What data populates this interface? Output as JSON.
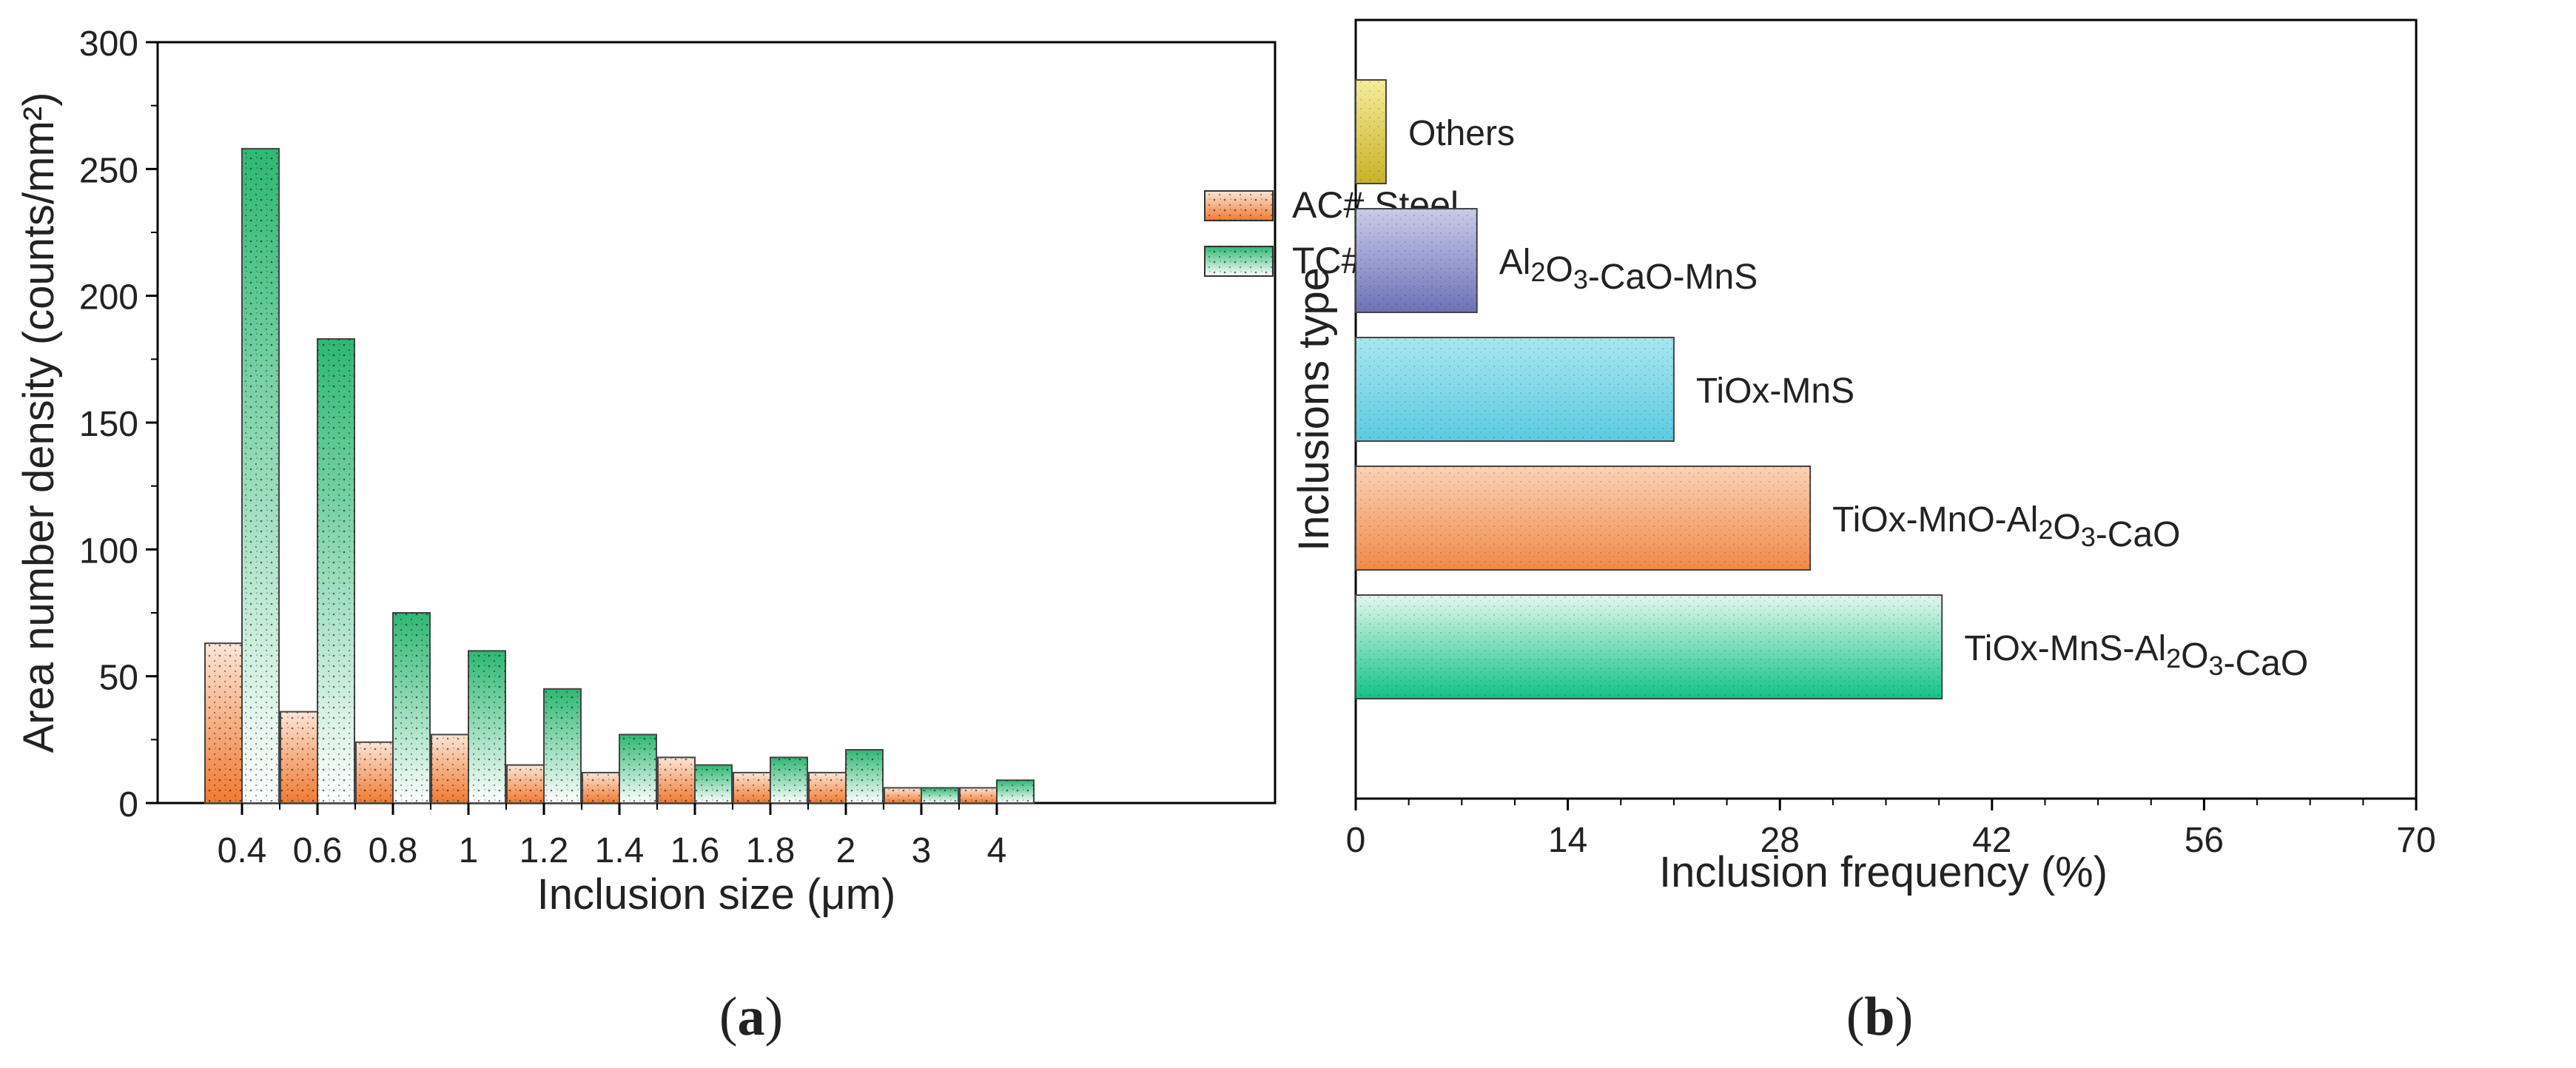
{
  "chart_data": [
    {
      "panel": "(a)",
      "panel_letter": "a",
      "type": "bar",
      "xlabel": "Inclusion size (μm)",
      "ylabel": "Area number density (counts/mm²)",
      "ylim": [
        0,
        300
      ],
      "yticks": [
        0,
        50,
        100,
        150,
        200,
        250,
        300
      ],
      "categories": [
        "0.4",
        "0.6",
        "0.8",
        "1",
        "1.2",
        "1.4",
        "1.6",
        "1.8",
        "2",
        "3",
        "4"
      ],
      "legend_position": "top-right",
      "series": [
        {
          "name": "AC# Steel",
          "color": "#F07A32",
          "values": [
            63,
            36,
            24,
            27,
            15,
            12,
            18,
            12,
            12,
            6,
            6
          ]
        },
        {
          "name": "TC# Steel",
          "color": "#2EB873",
          "values": [
            258,
            183,
            75,
            60,
            45,
            27,
            15,
            18,
            21,
            6,
            9
          ]
        }
      ]
    },
    {
      "panel": "(b)",
      "panel_letter": "b",
      "type": "bar",
      "orientation": "horizontal",
      "xlabel": "Inclusion frequency (%)",
      "ylabel": "Inclusions type",
      "xlim": [
        0,
        70
      ],
      "xticks": [
        0,
        14,
        28,
        42,
        56,
        70
      ],
      "categories": [
        {
          "label": "Others",
          "value": 2,
          "color": "#C9B227"
        },
        {
          "label": "Al2O3-CaO-MnS",
          "value": 8,
          "color": "#7C80C2"
        },
        {
          "label": "TiOx-MnS",
          "value": 21,
          "color": "#4CC5DC"
        },
        {
          "label": "TiOx-MnO-Al2O3-CaO",
          "value": 30,
          "color": "#F39A5E"
        },
        {
          "label": "TiOx-MnS-Al2O3-CaO",
          "value": 38.7,
          "color": "#20C48C"
        }
      ]
    }
  ]
}
